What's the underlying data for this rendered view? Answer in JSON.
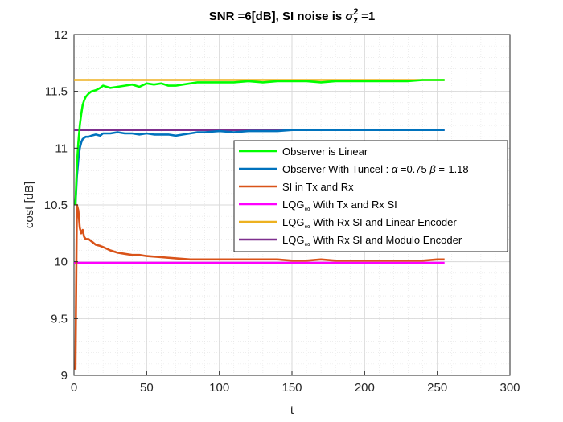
{
  "chart_data": {
    "type": "line",
    "title": {
      "prefix": "SNR =6[dB], SI noise is ",
      "symbol": "σ",
      "superscript": "2",
      "subscript": "z",
      "suffix": " =1"
    },
    "xlabel": "t",
    "ylabel": "cost [dB]",
    "xlim": [
      0,
      300
    ],
    "ylim": [
      9,
      12
    ],
    "xticks": [
      "0",
      "50",
      "100",
      "150",
      "200",
      "250",
      "300"
    ],
    "yticks": [
      "9",
      "9.5",
      "10",
      "10.5",
      "11",
      "11.5",
      "12"
    ],
    "grid": true,
    "minor_grid": true,
    "legend_position": "center-right",
    "series": [
      {
        "name": "Observer is Linear",
        "color": "#00ff00",
        "x": [
          1,
          2,
          3,
          4,
          5,
          6,
          7,
          8,
          10,
          12,
          15,
          18,
          20,
          25,
          30,
          35,
          40,
          45,
          50,
          55,
          60,
          65,
          70,
          75,
          80,
          85,
          90,
          95,
          100,
          110,
          120,
          130,
          140,
          150,
          160,
          170,
          180,
          190,
          200,
          210,
          220,
          230,
          240,
          250,
          255
        ],
        "y": [
          10.5,
          10.85,
          11.05,
          11.2,
          11.3,
          11.38,
          11.42,
          11.45,
          11.48,
          11.5,
          11.51,
          11.53,
          11.55,
          11.53,
          11.54,
          11.55,
          11.56,
          11.54,
          11.57,
          11.56,
          11.57,
          11.55,
          11.55,
          11.56,
          11.57,
          11.58,
          11.58,
          11.58,
          11.58,
          11.58,
          11.59,
          11.58,
          11.59,
          11.59,
          11.59,
          11.58,
          11.59,
          11.59,
          11.59,
          11.59,
          11.59,
          11.59,
          11.6,
          11.6,
          11.6
        ]
      },
      {
        "name": "Observer With Tuncel : ",
        "name_parts": {
          "alpha": "α",
          "alpha_value": " =0.75 ",
          "beta": "β",
          "beta_value": " =-1.18"
        },
        "color": "#0072bd",
        "x": [
          1,
          2,
          3,
          4,
          5,
          6,
          8,
          10,
          12,
          15,
          18,
          20,
          25,
          30,
          35,
          40,
          45,
          50,
          55,
          60,
          65,
          70,
          75,
          80,
          85,
          90,
          100,
          110,
          120,
          130,
          140,
          150,
          160,
          170,
          180,
          190,
          200,
          210,
          220,
          230,
          240,
          250,
          255
        ],
        "y": [
          10.5,
          10.75,
          10.9,
          11.0,
          11.05,
          11.08,
          11.1,
          11.1,
          11.11,
          11.12,
          11.11,
          11.13,
          11.13,
          11.14,
          11.13,
          11.13,
          11.12,
          11.13,
          11.12,
          11.12,
          11.12,
          11.11,
          11.12,
          11.13,
          11.14,
          11.14,
          11.15,
          11.14,
          11.15,
          11.15,
          11.15,
          11.16,
          11.16,
          11.16,
          11.16,
          11.16,
          11.16,
          11.16,
          11.16,
          11.16,
          11.16,
          11.16,
          11.16
        ]
      },
      {
        "name": "SI in Tx and Rx",
        "color": "#d95319",
        "x": [
          1,
          2,
          3,
          4,
          5,
          6,
          7,
          8,
          10,
          12,
          15,
          18,
          20,
          25,
          30,
          35,
          40,
          45,
          50,
          60,
          70,
          80,
          90,
          100,
          110,
          120,
          130,
          140,
          150,
          160,
          170,
          180,
          190,
          200,
          210,
          220,
          230,
          240,
          250,
          255
        ],
        "y": [
          9.05,
          10.5,
          10.45,
          10.3,
          10.25,
          10.28,
          10.22,
          10.2,
          10.2,
          10.18,
          10.15,
          10.14,
          10.13,
          10.1,
          10.08,
          10.07,
          10.06,
          10.06,
          10.05,
          10.04,
          10.03,
          10.02,
          10.02,
          10.02,
          10.02,
          10.02,
          10.02,
          10.02,
          10.01,
          10.01,
          10.02,
          10.01,
          10.01,
          10.01,
          10.01,
          10.01,
          10.01,
          10.01,
          10.02,
          10.02
        ]
      },
      {
        "name": "LQG",
        "name_sub": "∞",
        "name_rest": " With Tx and Rx SI",
        "color": "#ff00ff",
        "x": [
          0,
          255
        ],
        "y": [
          9.99,
          9.99
        ]
      },
      {
        "name": "LQG",
        "name_sub": "∞",
        "name_rest": " With Rx SI and Linear Encoder",
        "color": "#edb120",
        "x": [
          0,
          255
        ],
        "y": [
          11.6,
          11.6
        ]
      },
      {
        "name": "LQG",
        "name_sub": "∞",
        "name_rest": " With Rx SI and Modulo Encoder",
        "color": "#7e2f8e",
        "x": [
          0,
          255
        ],
        "y": [
          11.16,
          11.16
        ]
      }
    ]
  }
}
